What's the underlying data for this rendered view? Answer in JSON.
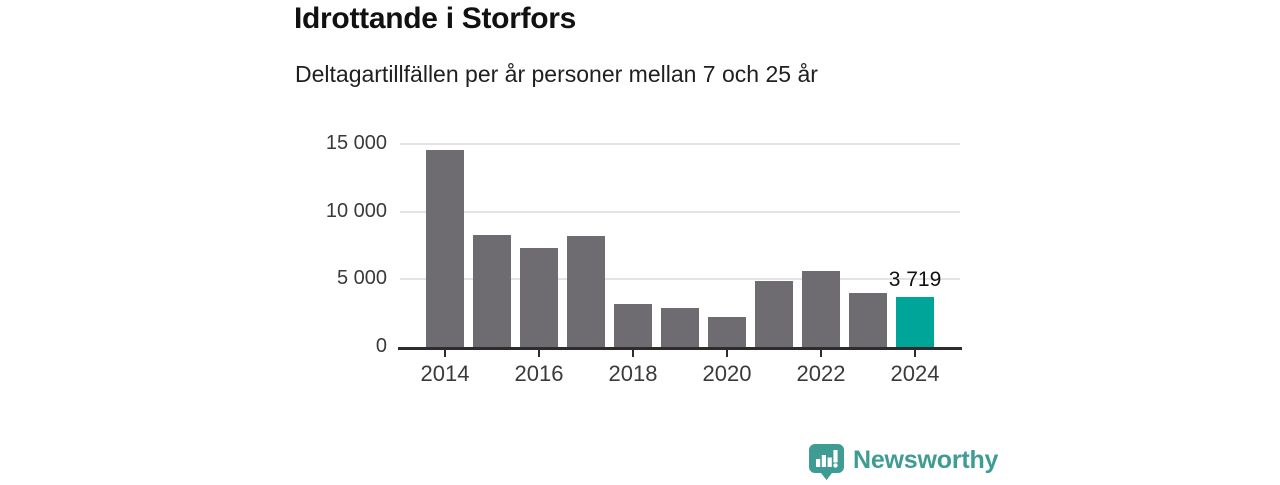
{
  "header": {
    "title": "Idrottande i Storfors",
    "subtitle": "Deltagartillfällen per år personer mellan 7 och 25 år"
  },
  "chart_data": {
    "type": "bar",
    "title": "Idrottande i Storfors",
    "subtitle": "Deltagartillfällen per år personer mellan 7 och 25 år",
    "categories": [
      "2014",
      "2015",
      "2016",
      "2017",
      "2018",
      "2019",
      "2020",
      "2021",
      "2022",
      "2023",
      "2024"
    ],
    "values": [
      14550,
      8250,
      7350,
      8200,
      3200,
      2850,
      2250,
      4900,
      5600,
      4000,
      3719
    ],
    "highlight": {
      "index": 10,
      "label": "3 719",
      "color": "#00a59a"
    },
    "bar_color": "#6e6c71",
    "ylim": [
      0,
      15000
    ],
    "yticks": [
      {
        "value": 0,
        "label": "0"
      },
      {
        "value": 5000,
        "label": "5 000"
      },
      {
        "value": 10000,
        "label": "10 000"
      },
      {
        "value": 15000,
        "label": "15 000"
      }
    ],
    "xtick_labels": [
      "2014",
      "2016",
      "2018",
      "2020",
      "2022",
      "2024"
    ],
    "grid": "horizontal-only",
    "legend": "none",
    "colors": {
      "gridline": "#e3e3e3",
      "axis": "#2d2d2d",
      "tick_text": "#3a3a3a"
    }
  },
  "footer": {
    "brand": "Newsworthy",
    "brand_color": "#3e9c95"
  }
}
